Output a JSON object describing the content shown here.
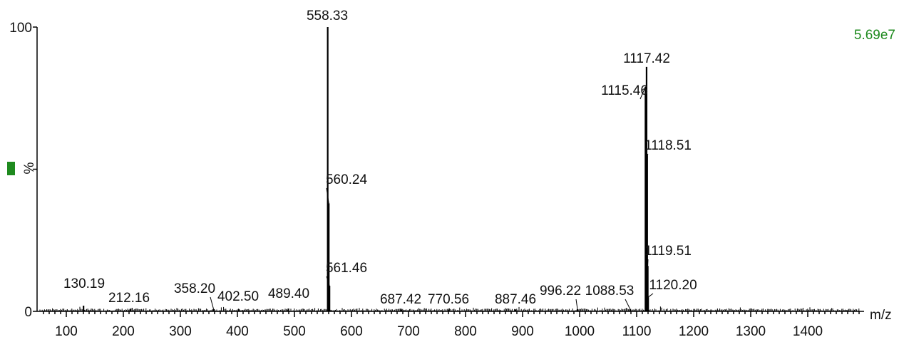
{
  "header": {
    "intensity": "5.69e7"
  },
  "chart_data": {
    "type": "bar",
    "xlabel": "m/z",
    "ylabel": "%",
    "xlim": [
      50,
      1500
    ],
    "ylim": [
      0,
      100
    ],
    "x_ticks": [
      100,
      200,
      300,
      400,
      500,
      600,
      700,
      800,
      900,
      1000,
      1100,
      1200,
      1300,
      1400
    ],
    "y_tick_labels": [
      "0",
      "100"
    ],
    "peaks": [
      {
        "mz": 130.19,
        "label": "130.19",
        "intensity": 2
      },
      {
        "mz": 212.16,
        "label": "212.16",
        "intensity": 0.8
      },
      {
        "mz": 358.2,
        "label": "358.20",
        "intensity": 0.8
      },
      {
        "mz": 402.5,
        "label": "402.50",
        "intensity": 0.8
      },
      {
        "mz": 489.4,
        "label": "489.40",
        "intensity": 1.0
      },
      {
        "mz": 558.33,
        "label": "558.33",
        "intensity": 100
      },
      {
        "mz": 560.24,
        "label": "560.24",
        "intensity": 38
      },
      {
        "mz": 561.46,
        "label": "561.46",
        "intensity": 9
      },
      {
        "mz": 687.42,
        "label": "687.42",
        "intensity": 0.6
      },
      {
        "mz": 770.56,
        "label": "770.56",
        "intensity": 0.6
      },
      {
        "mz": 887.46,
        "label": "887.46",
        "intensity": 0.6
      },
      {
        "mz": 996.22,
        "label": "996.22",
        "intensity": 0.8
      },
      {
        "mz": 1088.53,
        "label": "1088.53",
        "intensity": 0.8
      },
      {
        "mz": 1115.46,
        "label": "1115.46",
        "intensity": 79
      },
      {
        "mz": 1117.42,
        "label": "1117.42",
        "intensity": 86
      },
      {
        "mz": 1118.51,
        "label": "1118.51",
        "intensity": 55
      },
      {
        "mz": 1119.51,
        "label": "1119.51",
        "intensity": 16
      },
      {
        "mz": 1120.2,
        "label": "1120.20",
        "intensity": 5
      }
    ]
  }
}
